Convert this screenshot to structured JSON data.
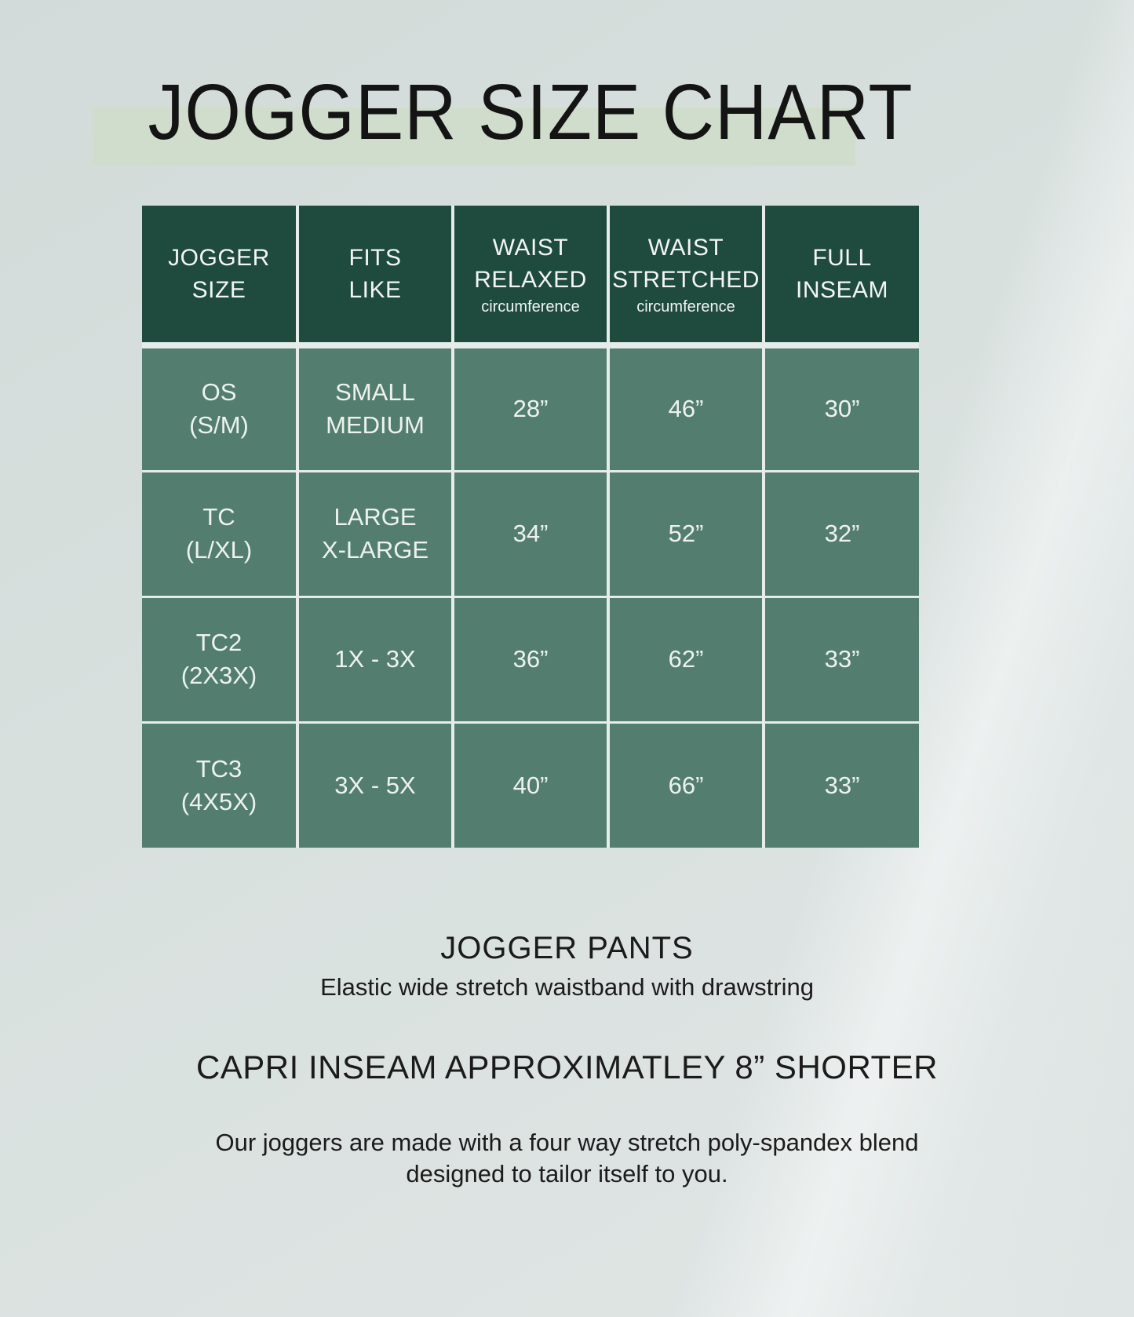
{
  "title": "JOGGER SIZE CHART",
  "table": {
    "headers": [
      {
        "label": "JOGGER\nSIZE",
        "sub": ""
      },
      {
        "label": "FITS\nLIKE",
        "sub": ""
      },
      {
        "label": "WAIST\nRELAXED",
        "sub": "circumference"
      },
      {
        "label": "WAIST\nSTRETCHED",
        "sub": "circumference"
      },
      {
        "label": "FULL\nINSEAM",
        "sub": ""
      }
    ],
    "rows": [
      {
        "size": "OS\n(S/M)",
        "fits": "SMALL\nMEDIUM",
        "waist_relaxed": "28”",
        "waist_stretched": "46”",
        "full_inseam": "30”"
      },
      {
        "size": "TC\n(L/XL)",
        "fits": "LARGE\nX-LARGE",
        "waist_relaxed": "34”",
        "waist_stretched": "52”",
        "full_inseam": "32”"
      },
      {
        "size": "TC2\n(2X3X)",
        "fits": "1X - 3X",
        "waist_relaxed": "36”",
        "waist_stretched": "62”",
        "full_inseam": "33”"
      },
      {
        "size": "TC3\n(4X5X)",
        "fits": "3X - 5X",
        "waist_relaxed": "40”",
        "waist_stretched": "66”",
        "full_inseam": "33”"
      }
    ]
  },
  "footer": {
    "product_heading": "JOGGER PANTS",
    "product_subheading": "Elastic wide stretch waistband with drawstring",
    "capri_note": "CAPRI INSEAM APPROXIMATLEY 8” SHORTER",
    "material_note": "Our joggers are made with a four way stretch poly-spandex blend\ndesigned to tailor itself to you."
  },
  "colors": {
    "header_green": "#1f4a3e",
    "row_green": "#537e6f",
    "divider": "#e6ece9",
    "title_highlight": "#d0ddcd",
    "background_top": "#d2dbd9",
    "background_bottom": "#dfe5e4"
  },
  "chart_data": {
    "type": "table",
    "title": "JOGGER SIZE CHART",
    "columns": [
      "JOGGER SIZE",
      "FITS LIKE",
      "WAIST RELAXED circumference",
      "WAIST STRETCHED circumference",
      "FULL INSEAM"
    ],
    "rows": [
      [
        "OS (S/M)",
        "SMALL MEDIUM",
        "28\"",
        "46\"",
        "30\""
      ],
      [
        "TC (L/XL)",
        "LARGE X-LARGE",
        "34\"",
        "52\"",
        "32\""
      ],
      [
        "TC2 (2X3X)",
        "1X - 3X",
        "36\"",
        "62\"",
        "33\""
      ],
      [
        "TC3 (4X5X)",
        "3X - 5X",
        "40\"",
        "66\"",
        "33\""
      ]
    ]
  }
}
